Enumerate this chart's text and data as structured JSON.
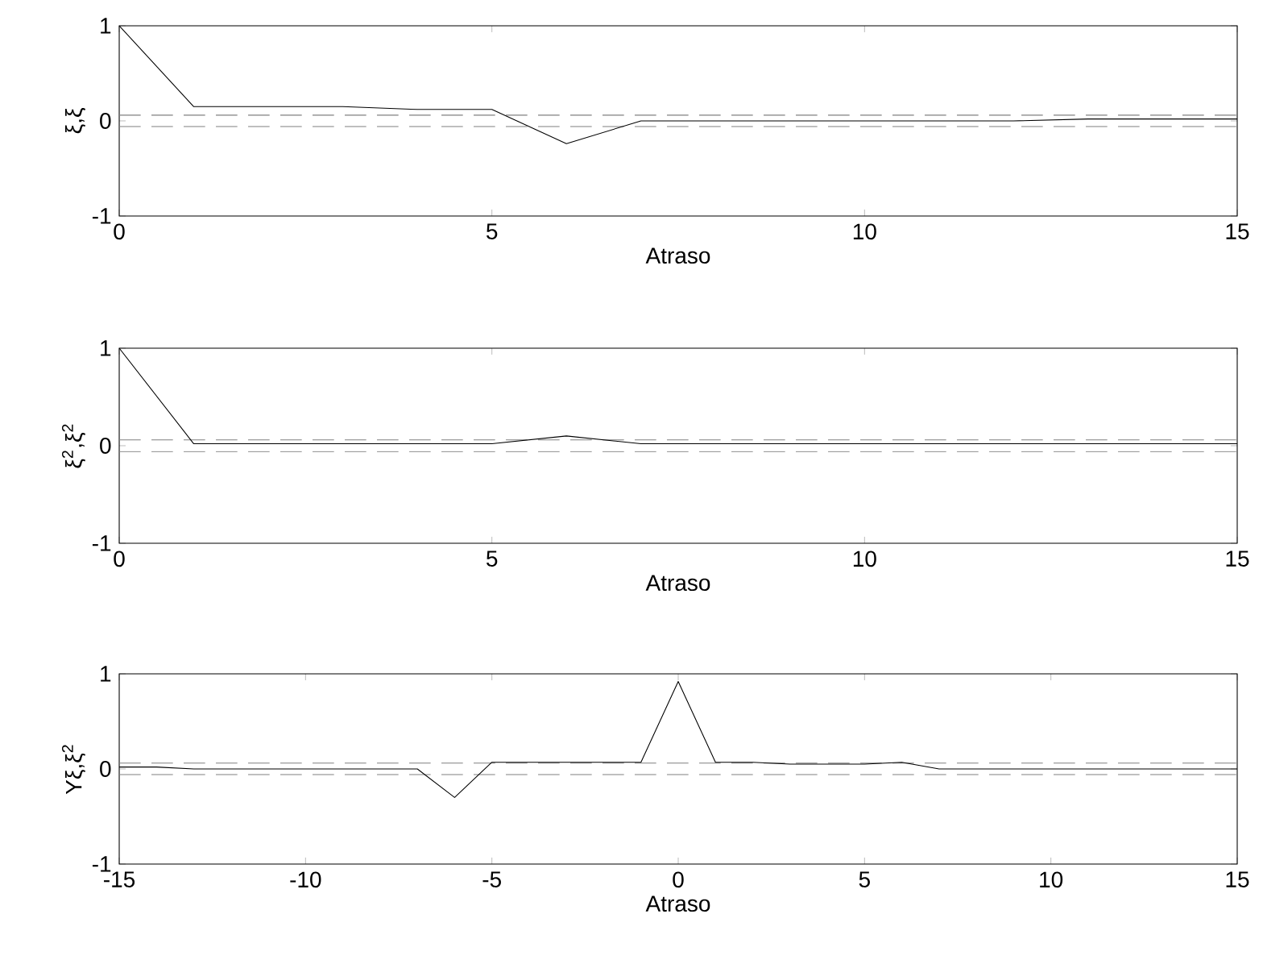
{
  "chart_data": [
    {
      "type": "line",
      "x": [
        0,
        1,
        2,
        3,
        4,
        5,
        6,
        7,
        8,
        9,
        10,
        11,
        12,
        13,
        14,
        15
      ],
      "xlabel": "Atraso",
      "ylabel": "ξ,ξ",
      "series": [
        {
          "color": "#000000",
          "values": [
            1,
            0.15,
            0.15,
            0.15,
            0.12,
            0.12,
            -0.24,
            0.0,
            0.0,
            0.0,
            0.0,
            0.0,
            0.0,
            0.02,
            0.02,
            0.02
          ]
        }
      ],
      "xlim": [
        0,
        15
      ],
      "ylim": [
        -1,
        1
      ],
      "xticks": [
        0,
        5,
        10,
        15
      ],
      "yticks": [
        -1,
        0,
        1
      ],
      "ref_lines": [
        {
          "axis": "y",
          "value": 0.06,
          "color": "#808080",
          "line_style": "dashed"
        },
        {
          "axis": "y",
          "value": -0.06,
          "color": "#808080",
          "line_style": "dashed"
        }
      ]
    },
    {
      "type": "line",
      "x": [
        0,
        1,
        2,
        3,
        4,
        5,
        6,
        7,
        8,
        9,
        10,
        11,
        12,
        13,
        14,
        15
      ],
      "xlabel": "Atraso",
      "ylabel": "ξ$^{2}$,ξ$^{2}$",
      "series": [
        {
          "color": "#000000",
          "values": [
            1,
            0.02,
            0.02,
            0.02,
            0.02,
            0.02,
            0.1,
            0.02,
            0.02,
            0.02,
            0.02,
            0.02,
            0.02,
            0.02,
            0.02,
            0.02
          ]
        }
      ],
      "xlim": [
        0,
        15
      ],
      "ylim": [
        -1,
        1
      ],
      "xticks": [
        0,
        5,
        10,
        15
      ],
      "yticks": [
        -1,
        0,
        1
      ],
      "ref_lines": [
        {
          "axis": "y",
          "value": 0.06,
          "color": "#808080",
          "line_style": "dashed"
        },
        {
          "axis": "y",
          "value": -0.06,
          "color": "#808080",
          "line_style": "dashed"
        }
      ]
    },
    {
      "type": "line",
      "x": [
        -15,
        -14,
        -13,
        -12,
        -11,
        -10,
        -9,
        -8,
        -7,
        -6,
        -5,
        -4,
        -3,
        -2,
        -1,
        0,
        1,
        2,
        3,
        4,
        5,
        6,
        7,
        8,
        9,
        10,
        11,
        12,
        13,
        14,
        15
      ],
      "xlabel": "Atraso",
      "ylabel": "Yξ,ξ$^{2}$",
      "series": [
        {
          "color": "#000000",
          "values": [
            0.02,
            0.02,
            0.0,
            0.0,
            0.0,
            0.0,
            0.0,
            0.0,
            0.0,
            -0.3,
            0.07,
            0.07,
            0.07,
            0.07,
            0.07,
            0.92,
            0.07,
            0.07,
            0.05,
            0.05,
            0.05,
            0.07,
            0.0,
            0.0,
            0.0,
            0.0,
            0.0,
            0.0,
            0.0,
            0.0,
            0.0
          ]
        }
      ],
      "xlim": [
        -15,
        15
      ],
      "ylim": [
        -1,
        1
      ],
      "xticks": [
        -15,
        -10,
        -5,
        0,
        5,
        10,
        15
      ],
      "yticks": [
        -1,
        0,
        1
      ],
      "ref_lines": [
        {
          "axis": "y",
          "value": 0.06,
          "color": "#808080",
          "line_style": "dashed"
        },
        {
          "axis": "y",
          "value": -0.06,
          "color": "#808080",
          "line_style": "dashed"
        }
      ]
    }
  ]
}
